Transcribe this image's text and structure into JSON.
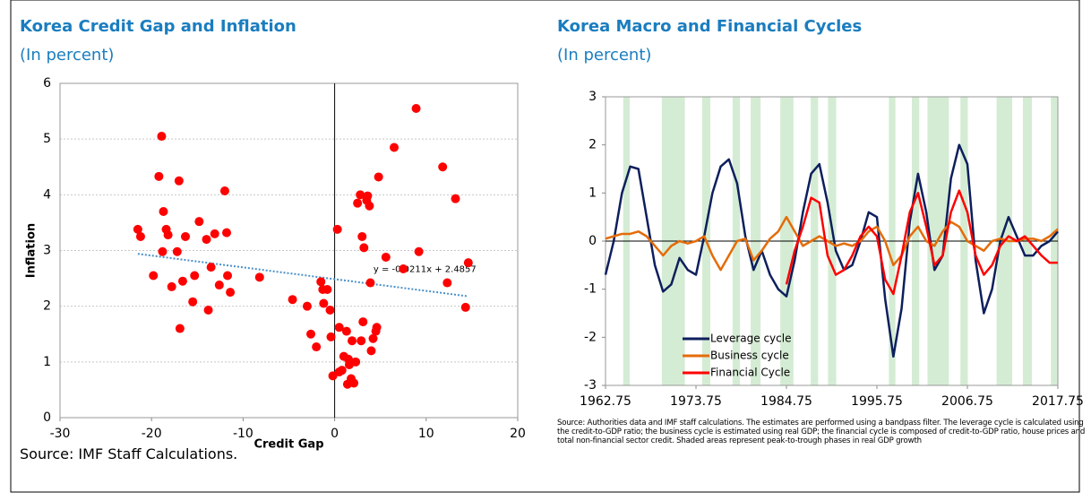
{
  "chart_data": [
    {
      "type": "scatter",
      "title": "Korea Credit Gap and Inflation",
      "subtitle": "(In percent)",
      "x_label": "Credit Gap",
      "y_label": "Inflation",
      "color": "#ff0000",
      "grid": true,
      "xlim": [
        -30,
        20
      ],
      "xticks": [
        -30,
        -20,
        -10,
        0,
        10,
        20
      ],
      "ylim": [
        0,
        6
      ],
      "yticks": [
        0,
        1,
        2,
        3,
        4,
        5,
        6
      ],
      "x": [
        -21.5,
        -21.2,
        -19.8,
        -19.2,
        -18.9,
        -18.7,
        -18.8,
        -18.4,
        -18.2,
        -17.8,
        -17.2,
        -17.0,
        -16.9,
        -16.6,
        -16.3,
        -15.5,
        -15.3,
        -14.8,
        -14.0,
        -13.8,
        -13.5,
        -13.1,
        -12.6,
        -12.0,
        -11.8,
        -11.7,
        -11.4,
        -8.2,
        -4.6,
        -3.0,
        -2.6,
        -2.0,
        -1.5,
        -1.3,
        -1.2,
        -0.8,
        -0.5,
        -0.4,
        -0.2,
        0.3,
        0.5,
        0.5,
        0.8,
        1.0,
        1.3,
        1.4,
        1.5,
        1.6,
        1.8,
        1.9,
        2.1,
        2.3,
        2.5,
        2.8,
        2.9,
        3.0,
        3.1,
        3.2,
        3.5,
        3.6,
        3.8,
        3.9,
        4.0,
        4.2,
        4.5,
        4.6,
        4.8,
        5.6,
        6.5,
        7.5,
        8.9,
        9.2,
        11.8,
        12.3,
        13.2,
        14.3,
        14.6
      ],
      "values": [
        3.38,
        3.25,
        2.55,
        4.33,
        5.05,
        3.7,
        2.98,
        3.38,
        3.28,
        2.35,
        2.98,
        4.25,
        1.6,
        2.45,
        3.25,
        2.08,
        2.55,
        3.52,
        3.2,
        1.93,
        2.7,
        3.3,
        2.38,
        4.07,
        3.32,
        2.55,
        2.25,
        2.52,
        2.12,
        2.0,
        1.5,
        1.27,
        2.44,
        2.3,
        2.05,
        2.3,
        1.93,
        1.45,
        0.75,
        3.38,
        1.62,
        0.82,
        0.85,
        1.1,
        1.55,
        0.6,
        1.05,
        0.95,
        0.7,
        1.38,
        0.62,
        1.0,
        3.85,
        4.0,
        1.38,
        3.25,
        1.72,
        3.05,
        3.9,
        3.98,
        3.8,
        2.42,
        1.2,
        1.42,
        1.55,
        1.62,
        4.32,
        2.88,
        4.85,
        2.67,
        5.55,
        2.98,
        4.5,
        2.42,
        3.93,
        1.98,
        2.78
      ],
      "trendline": {
        "x": [
          -21.5,
          14.5
        ],
        "y": [
          2.94,
          2.18
        ],
        "label": "y = -0.0211x + 2.4857",
        "color": "#4a90c8"
      },
      "source": "Source: IMF Staff Calculations."
    },
    {
      "type": "line",
      "title": "Korea Macro and Financial Cycles",
      "subtitle": "(In percent)",
      "xlim": [
        1962.75,
        2017.75
      ],
      "xticks": [
        1962.75,
        1973.75,
        1984.75,
        1995.75,
        2006.75,
        2017.75
      ],
      "ylim": [
        -3,
        3
      ],
      "yticks": [
        -3,
        -2,
        -1,
        0,
        1,
        2,
        3
      ],
      "grid": false,
      "shade_color": "#d5ecd4",
      "shaded": [
        [
          1964.9,
          1965.7
        ],
        [
          1969.6,
          1972.4
        ],
        [
          1974.5,
          1975.5
        ],
        [
          1978.2,
          1979.1
        ],
        [
          1980.4,
          1981.6
        ],
        [
          1984.0,
          1985.6
        ],
        [
          1987.7,
          1988.6
        ],
        [
          1989.8,
          1990.8
        ],
        [
          1997.2,
          1998.0
        ],
        [
          2000.0,
          2000.9
        ],
        [
          2001.9,
          2004.5
        ],
        [
          2005.9,
          2006.8
        ],
        [
          2010.3,
          2012.2
        ],
        [
          2013.5,
          2014.6
        ],
        [
          2016.9,
          2017.75
        ]
      ],
      "x": [
        1962.75,
        1963.75,
        1964.75,
        1965.75,
        1966.75,
        1967.75,
        1968.75,
        1969.75,
        1970.75,
        1971.75,
        1972.75,
        1973.75,
        1974.75,
        1975.75,
        1976.75,
        1977.75,
        1978.75,
        1979.75,
        1980.75,
        1981.75,
        1982.75,
        1983.75,
        1984.75,
        1985.75,
        1986.75,
        1987.75,
        1988.75,
        1989.75,
        1990.75,
        1991.75,
        1992.75,
        1993.75,
        1994.75,
        1995.75,
        1996.75,
        1997.75,
        1998.75,
        1999.75,
        2000.75,
        2001.75,
        2002.75,
        2003.75,
        2004.75,
        2005.75,
        2006.75,
        2007.75,
        2008.75,
        2009.75,
        2010.75,
        2011.75,
        2012.75,
        2013.75,
        2014.75,
        2015.75,
        2016.75,
        2017.75
      ],
      "series": [
        {
          "name": "Leverage cycle",
          "color": "#0d1f5c",
          "values": [
            -0.7,
            0.0,
            1.0,
            1.55,
            1.5,
            0.5,
            -0.5,
            -1.05,
            -0.9,
            -0.35,
            -0.6,
            -0.7,
            0.1,
            1.0,
            1.55,
            1.7,
            1.2,
            0.1,
            -0.6,
            -0.2,
            -0.7,
            -1.0,
            -1.15,
            -0.4,
            0.6,
            1.4,
            1.6,
            0.8,
            -0.2,
            -0.6,
            -0.5,
            0.0,
            0.6,
            0.5,
            -1.2,
            -2.4,
            -1.4,
            0.4,
            1.4,
            0.6,
            -0.6,
            -0.3,
            1.3,
            2.0,
            1.6,
            -0.4,
            -1.5,
            -1.0,
            0.0,
            0.5,
            0.1,
            -0.3,
            -0.3,
            -0.1,
            0.0,
            0.2
          ]
        },
        {
          "name": "Business cycle",
          "color": "#e46c0a",
          "values": [
            0.05,
            0.1,
            0.15,
            0.15,
            0.2,
            0.1,
            -0.1,
            -0.3,
            -0.1,
            0.0,
            -0.05,
            0.0,
            0.1,
            -0.3,
            -0.6,
            -0.3,
            0.0,
            0.05,
            -0.4,
            -0.2,
            0.05,
            0.2,
            0.5,
            0.2,
            -0.1,
            0.0,
            0.1,
            0.0,
            -0.1,
            -0.05,
            -0.1,
            0.0,
            0.2,
            0.3,
            0.0,
            -0.5,
            -0.3,
            0.1,
            0.3,
            0.0,
            -0.1,
            0.2,
            0.4,
            0.3,
            0.0,
            -0.1,
            -0.2,
            0.0,
            0.05,
            0.0,
            0.0,
            0.05,
            0.05,
            0.0,
            0.1,
            0.25
          ]
        },
        {
          "name": "Financial Cycle",
          "color": "#ff0000",
          "values": [
            null,
            null,
            null,
            null,
            null,
            null,
            null,
            null,
            null,
            null,
            null,
            null,
            null,
            null,
            null,
            null,
            null,
            null,
            null,
            null,
            null,
            null,
            -0.9,
            -0.2,
            0.3,
            0.9,
            0.8,
            -0.3,
            -0.7,
            -0.6,
            -0.3,
            0.1,
            0.3,
            0.1,
            -0.8,
            -1.1,
            -0.3,
            0.6,
            1.0,
            0.3,
            -0.5,
            -0.3,
            0.6,
            1.05,
            0.6,
            -0.3,
            -0.7,
            -0.5,
            -0.1,
            0.1,
            0.0,
            0.1,
            -0.1,
            -0.3,
            -0.45,
            -0.45
          ]
        }
      ],
      "source": "Source: Authorities data and IMF staff calculations. The estimates are performed using a bandpass filter. The leverage cycle is calculated using the credit-to-GDP ratio; the business cycle is estimated using real GDP; the financial cycle is composed of credit-to-GDP ratio, house prices and total non-financial sector credit. Shaded areas represent peak-to-trough phases in real GDP growth"
    }
  ]
}
